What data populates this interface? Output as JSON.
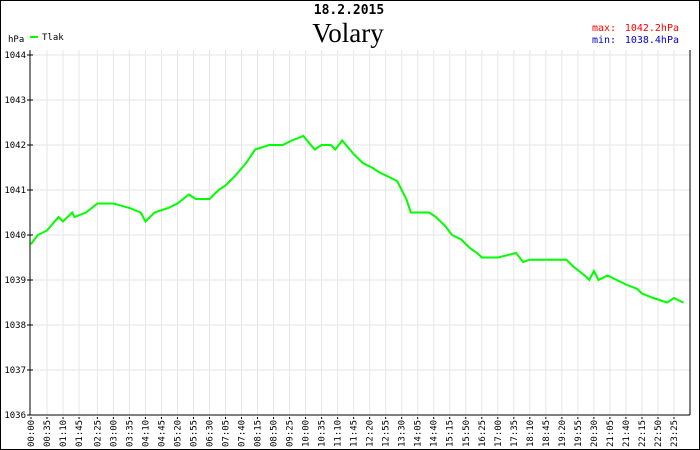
{
  "date": "18.2.2015",
  "station": "Volary",
  "stats": {
    "max_label": "max:",
    "max_value": "1042.2hPa",
    "min_label": "min:",
    "min_value": "1038.4hPa",
    "max_color": "#ff0000",
    "min_color": "#0000cc"
  },
  "chart_data": {
    "type": "line",
    "title": "Volary",
    "subtitle": "18.2.2015",
    "ylabel": "hPa",
    "xlabel": "",
    "ylim": [
      1036,
      1044
    ],
    "yticks": [
      "1036",
      "1037",
      "1038",
      "1039",
      "1040",
      "1041",
      "1042",
      "1043",
      "1044"
    ],
    "xlim": [
      "00:00",
      "24:00"
    ],
    "xticks": [
      "00:00",
      "00:35",
      "01:10",
      "01:45",
      "02:25",
      "03:00",
      "03:35",
      "04:10",
      "04:45",
      "05:20",
      "05:55",
      "06:30",
      "07:05",
      "07:40",
      "08:15",
      "08:50",
      "09:25",
      "10:00",
      "10:35",
      "11:10",
      "11:45",
      "12:20",
      "12:55",
      "13:30",
      "14:05",
      "14:40",
      "15:15",
      "15:50",
      "16:25",
      "17:00",
      "17:35",
      "18:10",
      "18:45",
      "19:20",
      "19:55",
      "20:30",
      "21:05",
      "21:40",
      "22:15",
      "22:50",
      "23:25"
    ],
    "grid": true,
    "legend_placement": "top-left",
    "series": [
      {
        "name": "Tlak",
        "color": "#00ff00",
        "x": [
          "00:00",
          "00:15",
          "00:35",
          "01:00",
          "01:10",
          "01:30",
          "01:35",
          "02:00",
          "02:25",
          "03:00",
          "03:35",
          "04:00",
          "04:10",
          "04:30",
          "05:00",
          "05:20",
          "05:45",
          "06:00",
          "06:30",
          "06:50",
          "07:05",
          "07:25",
          "07:50",
          "08:10",
          "08:40",
          "09:10",
          "09:30",
          "09:55",
          "10:20",
          "10:35",
          "10:55",
          "11:05",
          "11:20",
          "11:45",
          "12:05",
          "12:25",
          "12:40",
          "13:00",
          "13:20",
          "13:40",
          "13:50",
          "14:30",
          "14:45",
          "15:05",
          "15:20",
          "15:40",
          "16:00",
          "16:15",
          "16:25",
          "17:00",
          "17:20",
          "17:40",
          "17:55",
          "18:10",
          "19:30",
          "19:45",
          "20:10",
          "20:20",
          "20:30",
          "20:40",
          "21:00",
          "21:20",
          "21:40",
          "22:05",
          "22:15",
          "22:40",
          "23:10",
          "23:25",
          "23:45"
        ],
        "values": [
          1039.8,
          1040.0,
          1040.1,
          1040.4,
          1040.3,
          1040.5,
          1040.4,
          1040.5,
          1040.7,
          1040.7,
          1040.6,
          1040.5,
          1040.3,
          1040.5,
          1040.6,
          1040.7,
          1040.9,
          1040.8,
          1040.8,
          1041.0,
          1041.1,
          1041.3,
          1041.6,
          1041.9,
          1042.0,
          1042.0,
          1042.1,
          1042.2,
          1041.9,
          1042.0,
          1042.0,
          1041.9,
          1042.1,
          1041.8,
          1041.6,
          1041.5,
          1041.4,
          1041.3,
          1041.2,
          1040.8,
          1040.5,
          1040.5,
          1040.4,
          1040.2,
          1040.0,
          1039.9,
          1039.7,
          1039.6,
          1039.5,
          1039.5,
          1039.55,
          1039.6,
          1039.4,
          1039.45,
          1039.45,
          1039.3,
          1039.1,
          1039.0,
          1039.2,
          1039.0,
          1039.1,
          1039.0,
          1038.9,
          1038.8,
          1038.7,
          1038.6,
          1038.5,
          1038.6,
          1038.5
        ]
      }
    ]
  }
}
